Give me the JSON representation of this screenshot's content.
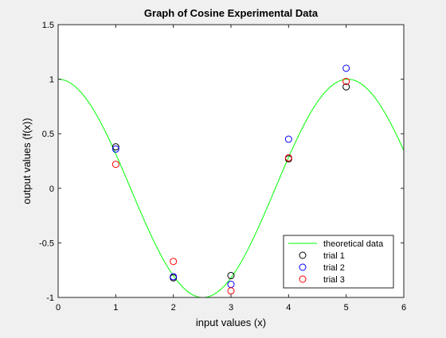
{
  "chart_data": {
    "type": "line",
    "title": "Graph of Cosine Experimental Data",
    "xlabel": "input values (x)",
    "ylabel": "output values (f(x))",
    "xlim": [
      0,
      6
    ],
    "ylim": [
      -1,
      1.5
    ],
    "xticks": [
      0,
      1,
      2,
      3,
      4,
      5,
      6
    ],
    "yticks": [
      -1,
      -0.5,
      0,
      0.5,
      1,
      1.5
    ],
    "xtick_labels": [
      "0",
      "1",
      "2",
      "3",
      "4",
      "5",
      "6"
    ],
    "ytick_labels": [
      "-1",
      "-0.5",
      "0",
      "0.5",
      "1",
      "1.5"
    ],
    "grid": false,
    "legend_position": "bottom-right",
    "series": [
      {
        "name": "theoretical data",
        "kind": "line",
        "color": "#00ff00",
        "function": "cos(1.25*x)"
      },
      {
        "name": "trial 1",
        "kind": "marker",
        "marker": "circle",
        "color": "#000000",
        "x": [
          1,
          2,
          3,
          4,
          5
        ],
        "y": [
          0.38,
          -0.82,
          -0.8,
          0.27,
          0.93
        ]
      },
      {
        "name": "trial 2",
        "kind": "marker",
        "marker": "circle",
        "color": "#0000ff",
        "x": [
          1,
          2,
          3,
          4,
          5
        ],
        "y": [
          0.36,
          -0.81,
          -0.88,
          0.45,
          1.1
        ]
      },
      {
        "name": "trial 3",
        "kind": "marker",
        "marker": "circle",
        "color": "#ff0000",
        "x": [
          1,
          2,
          3,
          4,
          5
        ],
        "y": [
          0.22,
          -0.67,
          -0.94,
          0.28,
          0.98
        ]
      }
    ]
  }
}
